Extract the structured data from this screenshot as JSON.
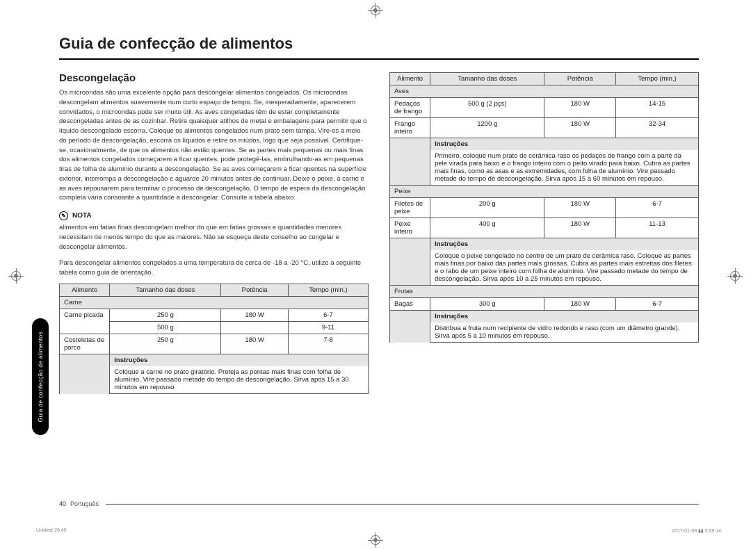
{
  "title": "Guia de confecção de alimentos",
  "side_tab": "Guia de confecção de alimentos",
  "subtitle": "Descongelação",
  "intro": "Os microondas são uma excelente opção para descongelar alimentos congelados. Os microondas descongelam alimentos suavemente num curto espaço de tempo. Se, inesperadamente, aparecerem convidados, o microondas pode ser muito útil. As aves congeladas têm de estar completamente descongeladas antes de as cozinhar. Retire quaisquer atilhos de metal e embalagens para permitir que o líquido descongelado escorra. Coloque os alimentos congelados num prato sem tampa. Vire-os a meio do período de descongelação, escorra os líquidos e retire os miúdos, logo que seja possível. Certifique-se, ocasionalmente, de que os alimentos não estão quentes. Se as partes mais pequenas ou mais finas dos alimentos congelados começarem a ficar quentes, pode protegê-las, embrulhando-as em pequenas tiras de folha de alumínio durante a descongelação. Se as aves começarem a ficar quentes na superfície exterior, interrompa a descongelação e aguarde 20 minutos antes de continuar. Deixe o peixe, a carne e as aves repousarem para terminar o processo de descongelação. O tempo de espera da descongelação completa varia consoante a quantidade a descongelar. Consulte a tabela abaixo.",
  "note_label": "NOTA",
  "note_text": "alimentos em fatias finas descongelam melhor do que em fatias grossas e quantidades menores necessitam de menos tempo do que as maiores. Não se esqueça deste conselho ao congelar e descongelar alimentos.",
  "para2": "Para descongelar alimentos congelados a uma temperatura de cerca de -18 a -20 °C, utilize a seguinte tabela como guia de orientação.",
  "headers": {
    "food": "Alimento",
    "portion": "Tamanho das doses",
    "power": "Potência",
    "time": "Tempo (min.)",
    "instr": "Instruções"
  },
  "t1": {
    "cat1": "Carne",
    "r1": {
      "name": "Carne picada",
      "p1": "250 g",
      "pw": "180 W",
      "t1": "6-7",
      "p2": "500 g",
      "t2": "9-11"
    },
    "r2": {
      "name": "Costeletas de porco",
      "p": "250 g",
      "pw": "180 W",
      "t": "7-8"
    },
    "instr1": "Coloque a carne no prato giratório. Proteja as pontas mais finas com folha de alumínio. Vire passado metade do tempo de descongelação. Sirva após 15 a 30 minutos em repouso."
  },
  "t2": {
    "cat1": "Aves",
    "r1": {
      "name": "Pedaços de frango",
      "p": "500 g (2 pçs)",
      "pw": "180 W",
      "t": "14-15"
    },
    "r2": {
      "name": "Frango inteiro",
      "p": "1200 g",
      "pw": "180 W",
      "t": "32-34"
    },
    "instr1": "Primeiro, coloque num prato de cerâmica raso os pedaços de frango com a parte da pele virada para baixo e o frango inteiro com o peito virado para baixo. Cubra as partes mais finas, como as asas e as extremidades, com folha de alumínio. Vire passado metade do tempo de descongelação. Sirva após 15 a 60 minutos em repouso.",
    "cat2": "Peixe",
    "r3": {
      "name": "Filetes de peixe",
      "p": "200 g",
      "pw": "180 W",
      "t": "6-7"
    },
    "r4": {
      "name": "Peixe inteiro",
      "p": "400 g",
      "pw": "180 W",
      "t": "11-13"
    },
    "instr2": "Coloque o peixe congelado no centro de um prato de cerâmica raso. Coloque as partes mais finas por baixo das partes mais grossas. Cubra as partes mais estreitas dos filetes e o rabo de um peixe inteiro com folha de alumínio. Vire passado metade do tempo de descongelação. Sirva após 10 a 25 minutos em repouso.",
    "cat3": "Frutas",
    "r5": {
      "name": "Bagas",
      "p": "300 g",
      "pw": "180 W",
      "t": "6-7"
    },
    "instr3": "Distribua a fruta num recipiente de vidro redondo e raso (com um diâmetro grande). Sirva após 5 a 10 minutos em repouso."
  },
  "footer": {
    "page": "40",
    "lang": "Português"
  },
  "print": {
    "left": "Untitled-26   40",
    "right": "2017-01-09   ▮▮ 5:59:14"
  }
}
